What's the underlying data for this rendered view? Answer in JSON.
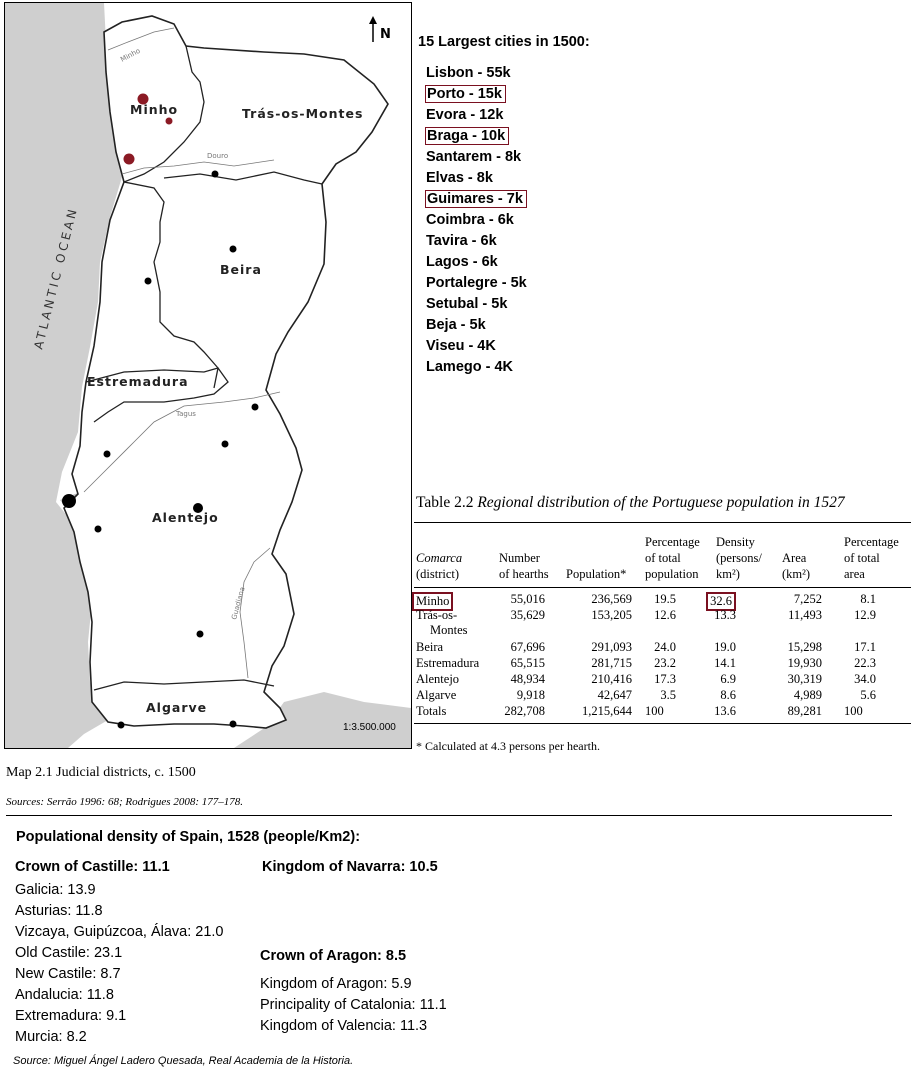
{
  "map": {
    "north_label": "N",
    "ocean_label": "ATLANTIC OCEAN",
    "regions": [
      "Minho",
      "Trás-os-Montes",
      "Beira",
      "Estremadura",
      "Alentejo",
      "Algarve"
    ],
    "rivers": [
      "Minho",
      "Douro",
      "Tagus",
      "Guadiana"
    ],
    "scale": "1:3.500.000",
    "caption": "Map 2.1  Judicial districts, c. 1500"
  },
  "sources": "Sources: Serrão 1996: 68; Rodrigues 2008: 177–178.",
  "cities": {
    "title": "15 Largest cities in 1500:",
    "items": [
      {
        "label": "Lisbon - 55k",
        "boxed": false
      },
      {
        "label": "Porto - 15k",
        "boxed": true
      },
      {
        "label": "Evora - 12k",
        "boxed": false
      },
      {
        "label": "Braga - 10k",
        "boxed": true
      },
      {
        "label": "Santarem - 8k",
        "boxed": false
      },
      {
        "label": "Elvas - 8k",
        "boxed": false
      },
      {
        "label": "Guimares - 7k",
        "boxed": true
      },
      {
        "label": "Coimbra - 6k",
        "boxed": false
      },
      {
        "label": "Tavira - 6k",
        "boxed": false
      },
      {
        "label": "Lagos - 6k",
        "boxed": false
      },
      {
        "label": "Portalegre - 5k",
        "boxed": false
      },
      {
        "label": "Setubal - 5k",
        "boxed": false
      },
      {
        "label": "Beja - 5k",
        "boxed": false
      },
      {
        "label": "Viseu - 4K",
        "boxed": false
      },
      {
        "label": "Lamego - 4K",
        "boxed": false
      }
    ]
  },
  "table": {
    "caption_num": "Table 2.2",
    "caption_text": "Regional distribution of the Portuguese population in 1527",
    "headers": {
      "comarca": "Comarca",
      "district": "(district)",
      "hearths_1": "Number",
      "hearths_2": "of hearths",
      "population": "Population*",
      "pct_pop_1": "Percentage",
      "pct_pop_2": "of total",
      "pct_pop_3": "population",
      "density_1": "Density",
      "density_2": "(persons/",
      "density_3": "km²)",
      "area_1": "Area",
      "area_2": "(km²)",
      "pct_area_1": "Percentage",
      "pct_area_2": "of total",
      "pct_area_3": "area"
    },
    "rows": [
      {
        "name": "Minho",
        "name2": "",
        "hearths": "55,016",
        "population": "236,569",
        "pct_pop": "19.5",
        "density": "32.6",
        "area": "7,252",
        "pct_area": "8.1"
      },
      {
        "name": "Trás-os-",
        "name2": "Montes",
        "hearths": "35,629",
        "population": "153,205",
        "pct_pop": "12.6",
        "density": "13.3",
        "area": "11,493",
        "pct_area": "12.9"
      },
      {
        "name": "Beira",
        "name2": "",
        "hearths": "67,696",
        "population": "291,093",
        "pct_pop": "24.0",
        "density": "19.0",
        "area": "15,298",
        "pct_area": "17.1"
      },
      {
        "name": "Estremadura",
        "name2": "",
        "hearths": "65,515",
        "population": "281,715",
        "pct_pop": "23.2",
        "density": "14.1",
        "area": "19,930",
        "pct_area": "22.3"
      },
      {
        "name": "Alentejo",
        "name2": "",
        "hearths": "48,934",
        "population": "210,416",
        "pct_pop": "17.3",
        "density": "6.9",
        "area": "30,319",
        "pct_area": "34.0"
      },
      {
        "name": "Algarve",
        "name2": "",
        "hearths": "9,918",
        "population": "42,647",
        "pct_pop": "3.5",
        "density": "8.6",
        "area": "4,989",
        "pct_area": "5.6"
      },
      {
        "name": "Totals",
        "name2": "",
        "hearths": "282,708",
        "population": "1,215,644",
        "pct_pop": "100",
        "density": "13.6",
        "area": "89,281",
        "pct_area": "100"
      }
    ],
    "footnote": "* Calculated at 4.3 persons per hearth."
  },
  "spain": {
    "title": "Populational density of Spain, 1528 (people/Km2):",
    "castille_title": "Crown of Castille: 11.1",
    "castille_items": [
      "Galicia: 13.9",
      "Asturias: 11.8",
      "Vizcaya, Guipúzcoa, Álava: 21.0",
      "Old Castile: 23.1",
      "New Castile: 8.7",
      "Andalucia: 11.8",
      "Extremadura: 9.1",
      "Murcia: 8.2"
    ],
    "navarra_title": "Kingdom of Navarra: 10.5",
    "aragon_title": "Crown of Aragon: 8.5",
    "aragon_items": [
      "Kingdom of Aragon: 5.9",
      "Principality of Catalonia: 11.1",
      "Kingdom of Valencia: 11.3"
    ],
    "source": "Source: Miguel Ángel Ladero Quesada, Real Academia de la Historia."
  },
  "colors": {
    "highlight": "#7a1020",
    "sea": "#cfcfcf",
    "coast": "#bdbdbd"
  }
}
